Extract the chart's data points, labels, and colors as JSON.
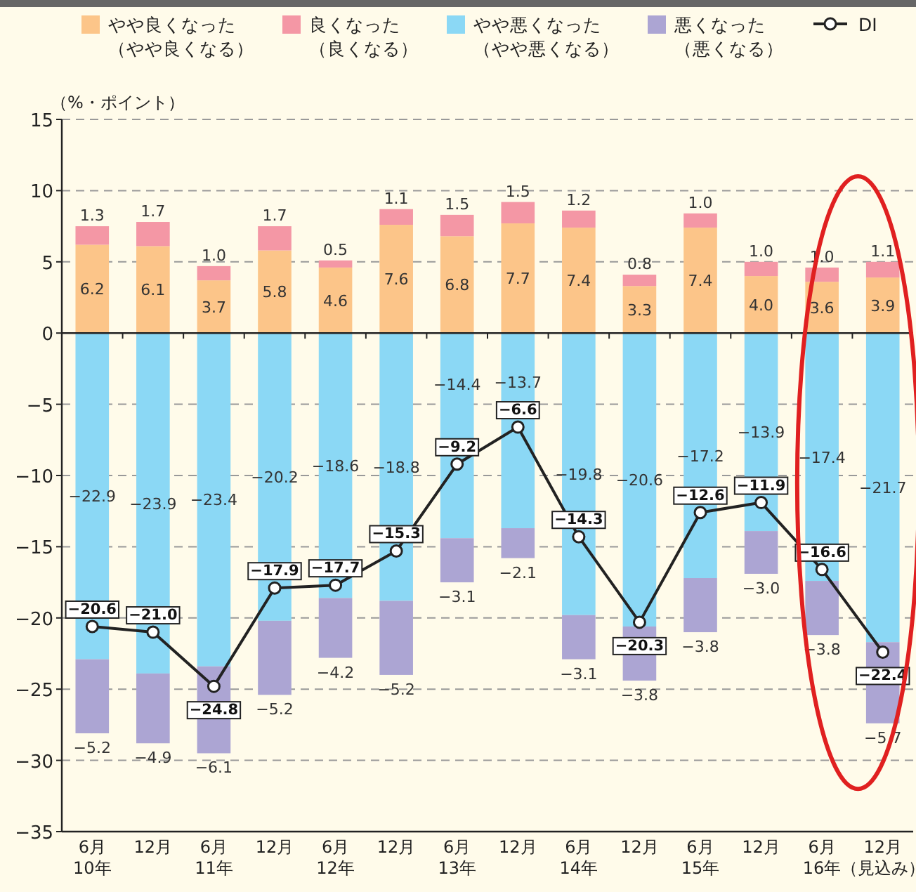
{
  "chart_data": {
    "type": "bar",
    "stacked": true,
    "ylabel": "（%・ポイント）",
    "categories": [
      "6月10年",
      "12月",
      "6月11年",
      "12月",
      "6月12年",
      "12月",
      "6月13年",
      "12月",
      "6月14年",
      "12月",
      "6月15年",
      "12月",
      "6月16年",
      "12月（見込み）"
    ],
    "series": [
      {
        "name": "やや良くなった（やや良くなる）",
        "color": "#fcc589",
        "values": [
          6.2,
          6.1,
          3.7,
          5.8,
          4.6,
          7.6,
          6.8,
          7.7,
          7.4,
          3.3,
          7.4,
          4.0,
          3.6,
          3.9
        ],
        "value_labels": [
          "6.2",
          "6.1",
          "3.7",
          "5.8",
          "4.6",
          "7.6",
          "6.8",
          "7.7",
          "7.4",
          "3.3",
          "7.4",
          "4.0",
          "3.6",
          "3.9"
        ]
      },
      {
        "name": "良くなった（良くなる）",
        "color": "#f497a5",
        "values": [
          1.3,
          1.7,
          1.0,
          1.7,
          0.5,
          1.1,
          1.5,
          1.5,
          1.2,
          0.8,
          1.0,
          1.0,
          1.0,
          1.1
        ],
        "value_labels": [
          "1.3",
          "1.7",
          "1.0",
          "1.7",
          "0.5",
          "1.1",
          "1.5",
          "1.5",
          "1.2",
          "0.8",
          "1.0",
          "1.0",
          "1.0",
          "1.1"
        ]
      },
      {
        "name": "やや悪くなった（やや悪くなる）",
        "color": "#8bd8f5",
        "values": [
          -22.9,
          -23.9,
          -23.4,
          -20.2,
          -18.6,
          -18.8,
          -14.4,
          -13.7,
          -19.8,
          -20.6,
          -17.2,
          -13.9,
          -17.4,
          -21.7
        ],
        "value_labels": [
          "−22.9",
          "−23.9",
          "−23.4",
          "−20.2",
          "−18.6",
          "−18.8",
          "−14.4",
          "−13.7",
          "−19.8",
          "−20.6",
          "−17.2",
          "−13.9",
          "−17.4",
          "−21.7"
        ]
      },
      {
        "name": "悪くなった（悪くなる）",
        "color": "#aca5d3",
        "values": [
          -5.2,
          -4.9,
          -6.1,
          -5.2,
          -4.2,
          -5.2,
          -3.1,
          -2.1,
          -3.1,
          -3.8,
          -3.8,
          -3.0,
          -3.8,
          -5.7
        ],
        "value_labels": [
          "−5.2",
          "−4.9",
          "−6.1",
          "−5.2",
          "−4.2",
          "−5.2",
          "−3.1",
          "−2.1",
          "−3.1",
          "−3.8",
          "−3.8",
          "−3.0",
          "−3.8",
          "−5.7"
        ]
      },
      {
        "name": "DI",
        "type": "line",
        "color": "#222222",
        "marker": "circle",
        "values": [
          -20.6,
          -21.0,
          -24.8,
          -17.9,
          -17.7,
          -15.3,
          -9.2,
          -6.6,
          -14.3,
          -20.3,
          -12.6,
          -11.9,
          -16.6,
          -22.4
        ],
        "value_labels": [
          "−20.6",
          "−21.0",
          "−24.8",
          "−17.9",
          "−17.7",
          "−15.3",
          "−9.2",
          "−6.6",
          "−14.3",
          "−20.3",
          "−12.6",
          "−11.9",
          "−16.6",
          "−22.4"
        ]
      }
    ],
    "ylim": [
      -35,
      15
    ],
    "yticks": [
      -35,
      -30,
      -25,
      -20,
      -15,
      -10,
      -5,
      0,
      5,
      10,
      15
    ],
    "grid": "y",
    "legend": "top"
  }
}
